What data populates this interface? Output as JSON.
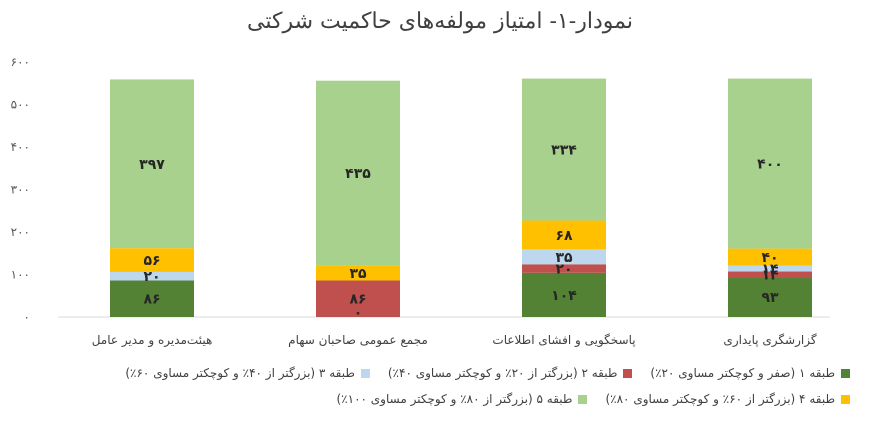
{
  "chart_data": {
    "type": "bar",
    "stacked": true,
    "title": "نمودار-۱- امتیاز مولفه‌های حاکمیت شرکتی",
    "xlabel": "",
    "ylabel": "",
    "ylim": [
      0,
      600
    ],
    "y_ticks": [
      0,
      100,
      200,
      300,
      400,
      500,
      600
    ],
    "y_tick_labels": [
      "۰",
      "۱۰۰",
      "۲۰۰",
      "۳۰۰",
      "۴۰۰",
      "۵۰۰",
      "۶۰۰"
    ],
    "grid": false,
    "legend_position": "bottom",
    "categories": [
      "هیئت‌مدیره و مدیر عامل",
      "مجمع عمومی صاحبان سهام",
      "پاسخگویی و افشای اطلاعات",
      "گزارشگری پایداری"
    ],
    "series": [
      {
        "name": "طبقه ۱ (صفر و کوچکتر مساوی ۲۰٪)",
        "color": "#548235",
        "values": [
          86,
          0,
          104,
          93
        ],
        "labels": [
          "۸۶",
          "۰",
          "۱۰۴",
          "۹۳"
        ]
      },
      {
        "name": "طبقه ۲ (بزرگتر از ۲۰٪ و کوچکتر مساوی ۴۰٪)",
        "color": "#C0504D",
        "values": [
          0,
          86,
          20,
          14
        ],
        "labels": [
          "",
          "۸۶",
          "۲۰",
          "۱۴"
        ]
      },
      {
        "name": "طبقه ۳ (بزرگتر از ۴۰٪ و کوچکتر مساوی ۶۰٪)",
        "color": "#BDD7EE",
        "values": [
          20,
          0,
          35,
          14
        ],
        "labels": [
          "۲۰",
          "",
          "۳۵",
          "۱۴"
        ]
      },
      {
        "name": "طبقه ۴ (بزرگتر از ۶۰٪ و کوچکتر مساوی ۸۰٪)",
        "color": "#FFC000",
        "values": [
          56,
          35,
          68,
          40
        ],
        "labels": [
          "۵۶",
          "۳۵",
          "۶۸",
          "۴۰"
        ]
      },
      {
        "name": "طبقه ۵ (بزرگتر از ۸۰٪ و کوچکتر مساوی ۱۰۰٪)",
        "color": "#A9D18E",
        "values": [
          397,
          435,
          334,
          400
        ],
        "labels": [
          "۳۹۷",
          "۴۳۵",
          "۳۳۴",
          "۴۰۰"
        ]
      }
    ]
  }
}
